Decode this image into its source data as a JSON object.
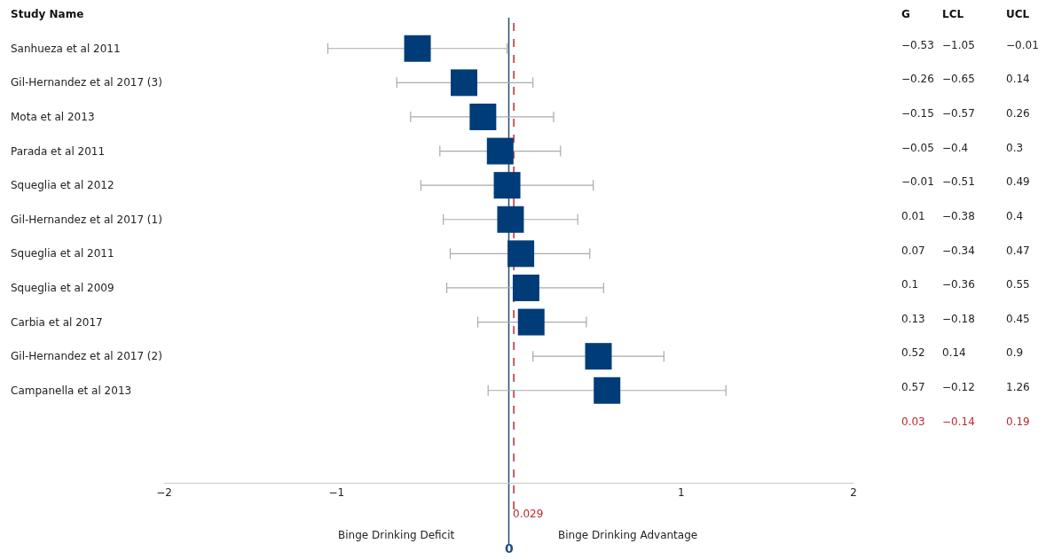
{
  "chart_data": {
    "type": "scatter",
    "orientation": "horizontal",
    "categories": [
      "Sanhueza et al 2011",
      "Gil-Hernandez et al 2017 (3)",
      "Mota et al 2013",
      "Parada et al 2011",
      "Squeglia et al 2012",
      "Gil-Hernandez et al 2017 (1)",
      "Squeglia et al 2011",
      "Squeglia et al 2009",
      "Carbia et al 2017",
      "Gil-Hernandez et al 2017 (2)",
      "Campanella et al 2013"
    ],
    "values": [
      -0.53,
      -0.26,
      -0.15,
      -0.05,
      -0.01,
      0.01,
      0.07,
      0.1,
      0.13,
      0.52,
      0.57
    ],
    "errors": [
      [
        -1.05,
        -0.01
      ],
      [
        -0.65,
        0.14
      ],
      [
        -0.57,
        0.26
      ],
      [
        -0.4,
        0.3
      ],
      [
        -0.51,
        0.49
      ],
      [
        -0.38,
        0.4
      ],
      [
        -0.34,
        0.47
      ],
      [
        -0.36,
        0.55
      ],
      [
        -0.18,
        0.45
      ],
      [
        0.14,
        0.9
      ],
      [
        -0.12,
        1.26
      ]
    ],
    "color": "#003c78",
    "marker": "square",
    "xlim": [
      -2,
      2
    ],
    "xticks": [
      {
        "value": -2,
        "label": "−2"
      },
      {
        "value": -1,
        "label": "−1"
      },
      1,
      2
    ],
    "ref_lines": [
      {
        "axis": "x",
        "value": 0,
        "label": "0",
        "color": "#1f4e80",
        "line_style": "solid"
      },
      {
        "axis": "x",
        "value": 0.029,
        "label": "0.029",
        "color": "#c0282d",
        "line_style": "dashed"
      }
    ],
    "annotations": [
      "Study Name",
      "G",
      "LCL",
      "UCL",
      "Binge Drinking Deficit",
      "Binge Drinking Advantage",
      "−0.53",
      "−1.05",
      "−0.01",
      "−0.26",
      "−0.65",
      "0.14",
      "−0.15",
      "−0.57",
      "0.26",
      "−0.05",
      "−0.4",
      "0.3",
      "−0.01",
      "−0.51",
      "0.49",
      "0.01",
      "−0.38",
      "0.4",
      "0.07",
      "−0.34",
      "0.47",
      "0.1",
      "−0.36",
      "0.55",
      "0.13",
      "−0.18",
      "0.45",
      "0.52",
      "0.14",
      "0.9",
      "0.57",
      "−0.12",
      "1.26",
      "0.03",
      "−0.14",
      "0.19"
    ],
    "legend": false
  }
}
